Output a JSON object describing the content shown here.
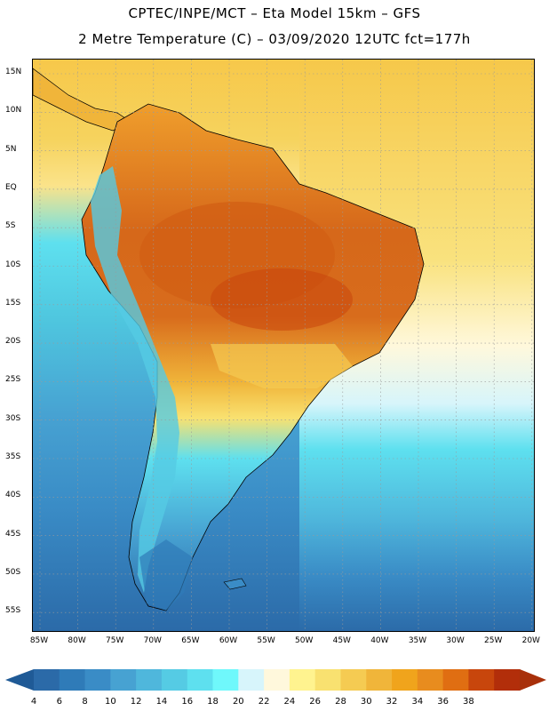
{
  "header": {
    "title_line1": "CPTEC/INPE/MCT –  Eta Model 15km – GFS",
    "title_line2": "2 Metre Temperature (C) – 03/09/2020 12UTC fct=177h"
  },
  "map": {
    "lat_labels": [
      "15N",
      "10N",
      "5N",
      "EQ",
      "5S",
      "10S",
      "15S",
      "20S",
      "25S",
      "30S",
      "35S",
      "40S",
      "45S",
      "50S",
      "55S"
    ],
    "lon_labels": [
      "85W",
      "80W",
      "75W",
      "70W",
      "65W",
      "60W",
      "55W",
      "50W",
      "45W",
      "40W",
      "35W",
      "30W",
      "25W",
      "20W"
    ]
  },
  "colorbar": {
    "ticks": [
      "4",
      "6",
      "8",
      "10",
      "12",
      "14",
      "16",
      "18",
      "20",
      "22",
      "24",
      "26",
      "28",
      "30",
      "32",
      "34",
      "36",
      "38"
    ],
    "colors": [
      "#2b6aa8",
      "#2f7bb8",
      "#3a8cc6",
      "#47a2d2",
      "#4fb7dc",
      "#55cbe4",
      "#5ee0ef",
      "#6ff8fb",
      "#d7f5fb",
      "#fff8dc",
      "#fff38f",
      "#f9e170",
      "#f5cb52",
      "#f0b53a",
      "#f0a41c",
      "#e88c1e",
      "#e06e12",
      "#c8460c",
      "#b22e0a"
    ],
    "left_arrow_color": "#1f5a96",
    "right_arrow_color": "#a8300a"
  },
  "map_colors": {
    "ocean_deep": "#2b6aa8",
    "ocean_mid": "#4fb7dc",
    "ocean_light": "#5ee0ef",
    "ocean_warm": "#f7d76a",
    "land_hot": "#d6681a",
    "land_warm": "#ef9e2c",
    "land_mild": "#f4c24a",
    "andes_cold": "#55cbe4",
    "border": "#000000"
  }
}
